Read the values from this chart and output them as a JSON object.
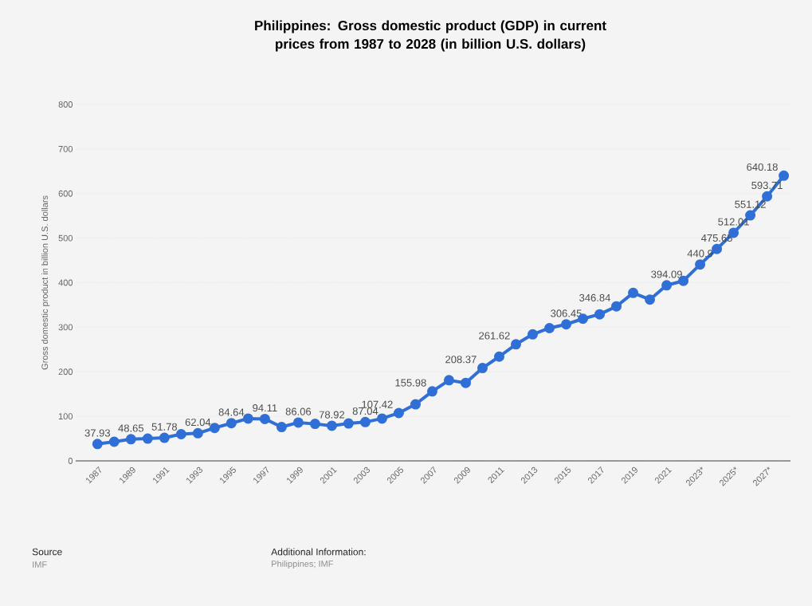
{
  "chart_data": {
    "type": "line",
    "title": "Philippines: Gross domestic product (GDP) in current prices from 1987 to 2028 (in billion U.S. dollars)",
    "ylabel": "Gross domestic product in billion U.S. dollars",
    "categories": [
      "1987",
      null,
      "1989",
      null,
      "1991",
      null,
      "1993",
      null,
      "1995",
      null,
      "1997",
      null,
      "1999",
      null,
      "2001",
      null,
      "2003",
      null,
      "2005",
      null,
      "2007",
      null,
      "2009",
      null,
      "2011",
      null,
      "2013",
      null,
      "2015",
      null,
      "2017",
      null,
      "2019",
      null,
      "2021",
      null,
      "2023*",
      null,
      "2025*",
      null,
      "2027*",
      null
    ],
    "values": [
      37.93,
      43,
      48.65,
      50,
      51.78,
      60,
      62.04,
      74,
      84.64,
      95,
      94.11,
      76,
      86.06,
      83,
      78.92,
      84,
      87.04,
      95,
      107.42,
      127,
      155.98,
      181,
      175,
      208.37,
      234,
      261.62,
      284,
      298,
      306.45,
      319,
      329,
      346.84,
      377,
      362,
      394.09,
      404,
      440.9,
      475.65,
      512.01,
      551.12,
      593.71,
      640.18
    ],
    "value_labels": [
      "37.93",
      null,
      "48.65",
      null,
      "51.78",
      null,
      "62.04",
      null,
      "84.64",
      null,
      "94.11",
      null,
      "86.06",
      null,
      "78.92",
      null,
      "87.04",
      null,
      "107.42",
      null,
      "155.98",
      null,
      null,
      "208.37",
      null,
      "261.62",
      null,
      null,
      "306.45",
      null,
      null,
      "346.84",
      null,
      null,
      "394.09",
      null,
      "440.9",
      "475.65",
      "512.01",
      "551.12",
      "593.71",
      "640.18"
    ],
    "color": "#2f6fd6",
    "ylim": [
      0,
      800
    ],
    "yticks": [
      0,
      100,
      200,
      300,
      400,
      500,
      600,
      700,
      800
    ],
    "grid": "y",
    "marker": "circle",
    "line_style": "solid",
    "annotations": [
      "Source",
      "IMF",
      "Additional Information:",
      "Philippines; IMF"
    ]
  }
}
